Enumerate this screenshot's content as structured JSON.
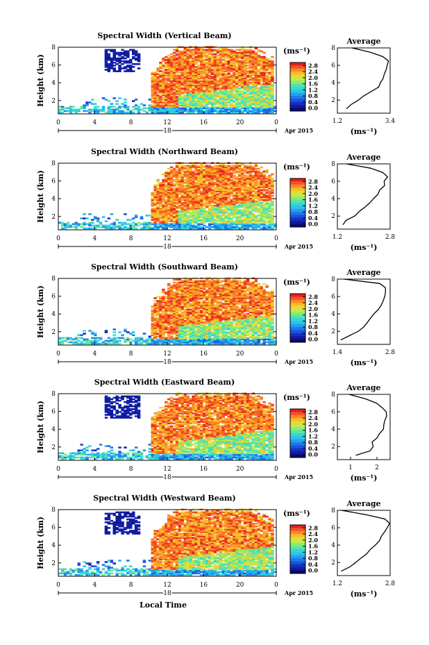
{
  "figure": {
    "xlabel": "Local Time",
    "date_label": "Apr 2015",
    "day_label": "18",
    "colorbar_unit": "(ms⁻¹)",
    "average_title": "Average"
  },
  "chart_data": [
    {
      "type": "heatmap",
      "title": "Spectral Width (Vertical Beam)",
      "ylabel": "Height (km)",
      "xlabel": "",
      "x_ticks": [
        "0",
        "4",
        "8",
        "12",
        "16",
        "20",
        "0"
      ],
      "y_ticks": [
        "2",
        "4",
        "6",
        "8"
      ],
      "xlim": [
        0,
        24
      ],
      "ylim": [
        0.5,
        8
      ],
      "colorbar": {
        "ticks": [
          "2.8",
          "2.4",
          "2.0",
          "1.6",
          "1.2",
          "0.8",
          "0.4",
          "0.0"
        ],
        "range": [
          0,
          3.0
        ]
      },
      "average_profile": {
        "title": "Average",
        "xlabel": "(ms⁻¹)",
        "x_ticks": [
          "1.2",
          "3.4"
        ],
        "xlim": [
          1.2,
          3.4
        ],
        "heights": [
          1.0,
          1.5,
          2.0,
          2.5,
          3.0,
          3.5,
          4.0,
          4.5,
          5.0,
          5.5,
          6.0,
          6.5,
          7.0,
          7.5,
          8.0
        ],
        "values": [
          1.6,
          1.8,
          2.1,
          2.3,
          2.6,
          2.9,
          3.05,
          3.1,
          3.2,
          3.25,
          3.3,
          3.28,
          3.1,
          2.6,
          1.8
        ]
      }
    },
    {
      "type": "heatmap",
      "title": "Spectral Width (Northward Beam)",
      "ylabel": "Height (km)",
      "xlabel": "",
      "x_ticks": [
        "0",
        "4",
        "8",
        "12",
        "16",
        "20",
        "0"
      ],
      "y_ticks": [
        "2",
        "4",
        "6",
        "8"
      ],
      "xlim": [
        0,
        24
      ],
      "ylim": [
        0.5,
        8
      ],
      "colorbar": {
        "ticks": [
          "2.8",
          "2.4",
          "2.0",
          "1.6",
          "1.2",
          "0.8",
          "0.4",
          "0.0"
        ],
        "range": [
          0,
          3.0
        ]
      },
      "average_profile": {
        "title": "Average",
        "xlabel": "(ms⁻¹)",
        "x_ticks": [
          "1.2",
          "2.8"
        ],
        "xlim": [
          1.2,
          2.8
        ],
        "heights": [
          1.0,
          1.5,
          2.0,
          2.5,
          3.0,
          3.5,
          4.0,
          4.5,
          5.0,
          5.5,
          6.0,
          6.5,
          7.0,
          7.5,
          8.0
        ],
        "values": [
          1.35,
          1.5,
          1.7,
          1.85,
          2.0,
          2.15,
          2.3,
          2.4,
          2.5,
          2.6,
          2.65,
          2.7,
          2.6,
          2.2,
          1.5
        ]
      }
    },
    {
      "type": "heatmap",
      "title": "Spectral Width (Southward Beam)",
      "ylabel": "Height (km)",
      "xlabel": "",
      "x_ticks": [
        "0",
        "4",
        "8",
        "12",
        "16",
        "20",
        "0"
      ],
      "y_ticks": [
        "2",
        "4",
        "6",
        "8"
      ],
      "xlim": [
        0,
        24
      ],
      "ylim": [
        0.5,
        8
      ],
      "colorbar": {
        "ticks": [
          "2.8",
          "2.4",
          "2.0",
          "1.6",
          "1.2",
          "0.8",
          "0.4",
          "0.0"
        ],
        "range": [
          0,
          3.0
        ]
      },
      "average_profile": {
        "title": "Average",
        "xlabel": "(ms⁻¹)",
        "x_ticks": [
          "1.4",
          "2.8"
        ],
        "xlim": [
          1.4,
          2.8
        ],
        "heights": [
          1.0,
          1.5,
          2.0,
          2.5,
          3.0,
          3.5,
          4.0,
          4.5,
          5.0,
          5.5,
          6.0,
          6.5,
          7.0,
          7.5,
          8.0
        ],
        "values": [
          1.5,
          1.75,
          1.95,
          2.1,
          2.2,
          2.3,
          2.4,
          2.5,
          2.55,
          2.6,
          2.65,
          2.7,
          2.7,
          2.5,
          1.6
        ]
      }
    },
    {
      "type": "heatmap",
      "title": "Spectral Width (Eastward Beam)",
      "ylabel": "Height (km)",
      "xlabel": "",
      "x_ticks": [
        "0",
        "4",
        "8",
        "12",
        "16",
        "20",
        "0"
      ],
      "y_ticks": [
        "2",
        "4",
        "6",
        "8"
      ],
      "xlim": [
        0,
        24
      ],
      "ylim": [
        0.5,
        8
      ],
      "colorbar": {
        "ticks": [
          "2.8",
          "2.4",
          "2.0",
          "1.6",
          "1.2",
          "0.8",
          "0.4",
          "0.0"
        ],
        "range": [
          0,
          3.0
        ]
      },
      "average_profile": {
        "title": "Average",
        "xlabel": "(ms⁻¹)",
        "x_ticks": [
          "1",
          "2"
        ],
        "xlim": [
          0.5,
          2.5
        ],
        "heights": [
          1.0,
          1.5,
          2.0,
          2.5,
          3.0,
          3.5,
          4.0,
          4.5,
          5.0,
          5.5,
          6.0,
          6.5,
          7.0,
          7.5,
          8.0
        ],
        "values": [
          1.2,
          1.7,
          1.9,
          1.8,
          2.0,
          2.1,
          2.2,
          2.25,
          2.3,
          2.35,
          2.3,
          2.2,
          2.0,
          1.6,
          0.9
        ]
      }
    },
    {
      "type": "heatmap",
      "title": "Spectral Width (Westward Beam)",
      "ylabel": "Height (km)",
      "xlabel": "Local Time",
      "x_ticks": [
        "0",
        "4",
        "8",
        "12",
        "16",
        "20",
        "0"
      ],
      "y_ticks": [
        "2",
        "4",
        "6",
        "8"
      ],
      "xlim": [
        0,
        24
      ],
      "ylim": [
        0.5,
        8
      ],
      "colorbar": {
        "ticks": [
          "2.8",
          "2.4",
          "2.0",
          "1.6",
          "1.2",
          "0.8",
          "0.4",
          "0.0"
        ],
        "range": [
          0,
          3.0
        ]
      },
      "average_profile": {
        "title": "Average",
        "xlabel": "(ms⁻¹)",
        "x_ticks": [
          "1.2",
          "2.8"
        ],
        "xlim": [
          1.2,
          2.8
        ],
        "heights": [
          1.0,
          1.5,
          2.0,
          2.5,
          3.0,
          3.5,
          4.0,
          4.5,
          5.0,
          5.5,
          6.0,
          6.5,
          7.0,
          7.5,
          8.0
        ],
        "values": [
          1.35,
          1.55,
          1.75,
          1.9,
          2.05,
          2.2,
          2.35,
          2.45,
          2.55,
          2.6,
          2.7,
          2.75,
          2.6,
          2.1,
          1.3
        ]
      }
    }
  ]
}
